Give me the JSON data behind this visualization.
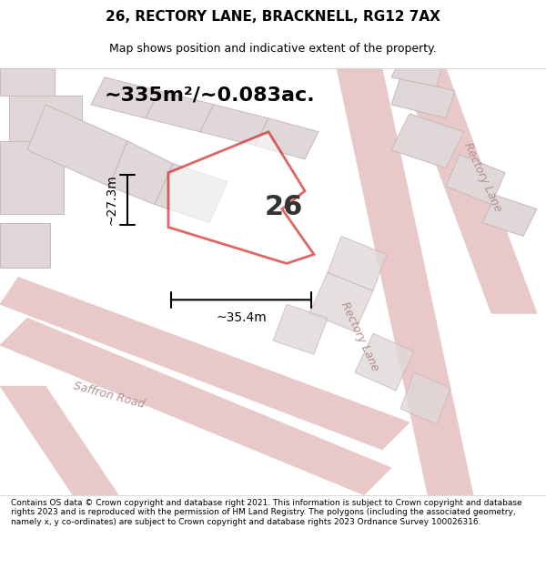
{
  "title": "26, RECTORY LANE, BRACKNELL, RG12 7AX",
  "subtitle": "Map shows position and indicative extent of the property.",
  "area_text": "~335m²/~0.083ac.",
  "dim_width": "~35.4m",
  "dim_height": "~27.3m",
  "plot_label": "26",
  "copyright_text": "Contains OS data © Crown copyright and database right 2021. This information is subject to Crown copyright and database rights 2023 and is reproduced with the permission of HM Land Registry. The polygons (including the associated geometry, namely x, y co-ordinates) are subject to Crown copyright and database rights 2023 Ordnance Survey 100026316.",
  "bg_color": "#f5f0f0",
  "map_bg": "#f0ece8",
  "plot_color": "#cc0000",
  "road_color": "#e8c8c8",
  "building_color": "#e0d8d8",
  "building_edge": "#c8b8b8",
  "road_label_color": "#b09090",
  "title_color": "#000000",
  "figsize": [
    6.0,
    6.25
  ],
  "dpi": 100
}
